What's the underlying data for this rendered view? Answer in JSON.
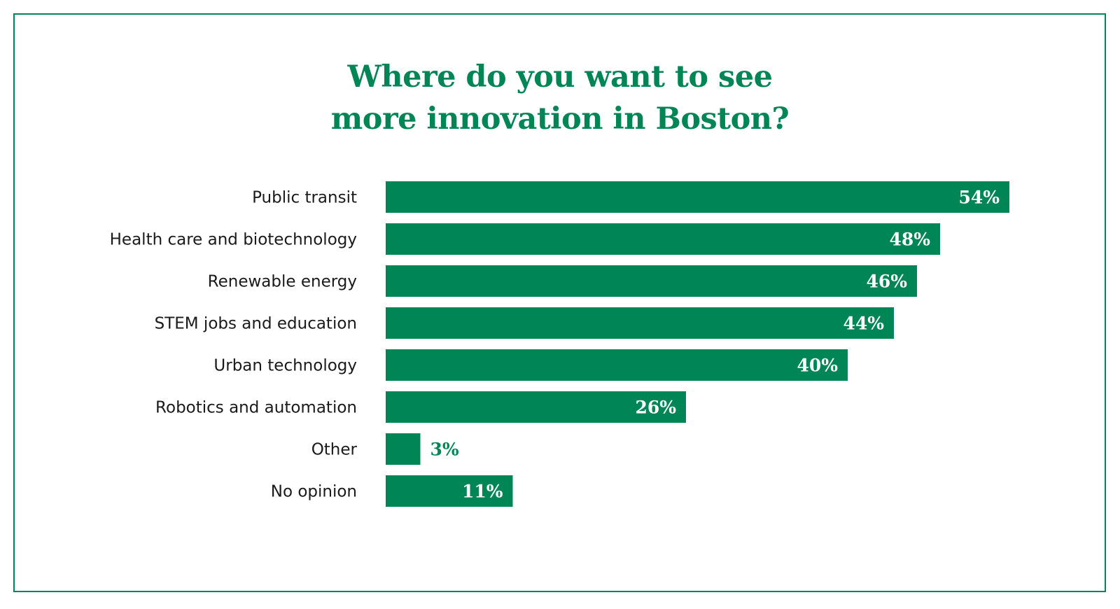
{
  "title_lines": [
    "Where do you want to see",
    "more innovation in Boston?"
  ],
  "colors": {
    "accent": "#008556",
    "label_text": "#1a1a1a",
    "value_text_inside": "#ffffff"
  },
  "chart_data": {
    "type": "bar",
    "orientation": "horizontal",
    "title": "Where do you want to see more innovation in Boston?",
    "categories": [
      "Public transit",
      "Health care and biotechnology",
      "Renewable energy",
      "STEM jobs and education",
      "Urban technology",
      "Robotics and automation",
      "Other",
      "No opinion"
    ],
    "values": [
      54,
      48,
      46,
      44,
      40,
      26,
      3,
      11
    ],
    "value_labels": [
      "54%",
      "48%",
      "46%",
      "44%",
      "40%",
      "26%",
      "3%",
      "11%"
    ],
    "unit": "%",
    "xlim": [
      0,
      54
    ],
    "grid": false,
    "legend": "none"
  }
}
